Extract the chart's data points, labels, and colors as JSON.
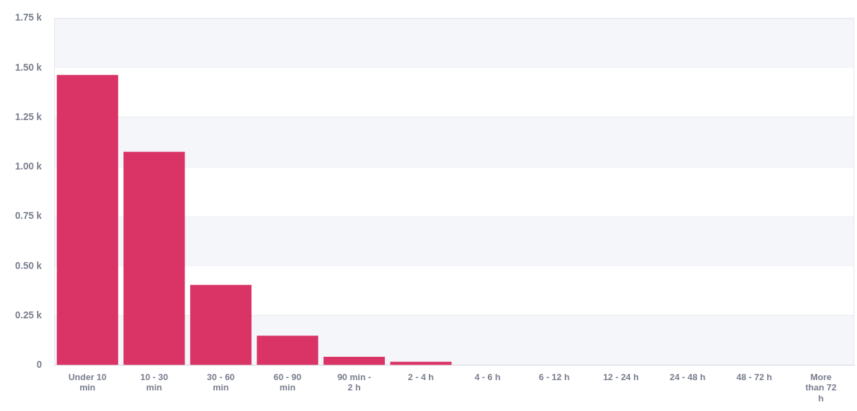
{
  "chart_data": {
    "type": "bar",
    "categories": [
      "Under 10 min",
      "10 - 30 min",
      "30 - 60 min",
      "60 - 90 min",
      "90 min - 2 h",
      "2 - 4 h",
      "4 - 6 h",
      "6 - 12 h",
      "12 - 24 h",
      "24 - 48 h",
      "48 - 72 h",
      "More than 72 h"
    ],
    "values": [
      1.463,
      1.076,
      0.405,
      0.149,
      0.042,
      0.017,
      0,
      0,
      0,
      0,
      0,
      0
    ],
    "color": "#d93465",
    "ylim": [
      0,
      1.75
    ],
    "yticks": [
      {
        "value": 0,
        "label": "0"
      },
      {
        "value": 0.25,
        "label": "0.25 k"
      },
      {
        "value": 0.5,
        "label": "0.50 k"
      },
      {
        "value": 0.75,
        "label": "0.75 k"
      },
      {
        "value": 1,
        "label": "1.00 k"
      },
      {
        "value": 1.25,
        "label": "1.25 k"
      },
      {
        "value": 1.5,
        "label": "1.50 k"
      },
      {
        "value": 1.75,
        "label": "1.75 k"
      }
    ],
    "grid": "y",
    "legend": false
  }
}
